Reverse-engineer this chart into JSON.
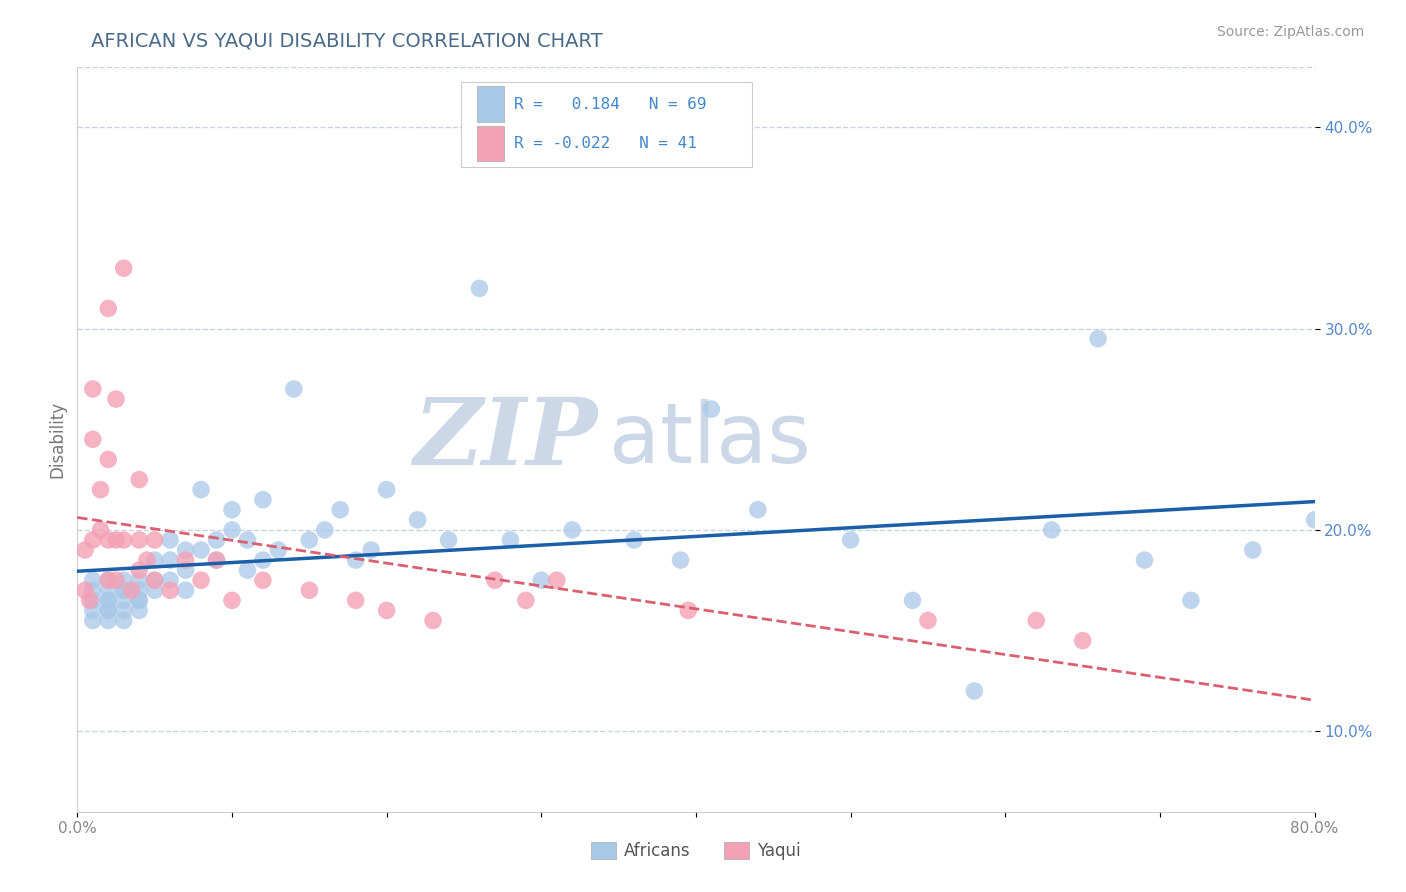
{
  "title": "AFRICAN VS YAQUI DISABILITY CORRELATION CHART",
  "source_text": "Source: ZipAtlas.com",
  "ylabel": "Disability",
  "xlim": [
    0.0,
    0.8
  ],
  "ylim": [
    0.06,
    0.43
  ],
  "xticks": [
    0.0,
    0.1,
    0.2,
    0.3,
    0.4,
    0.5,
    0.6,
    0.7,
    0.8
  ],
  "xticklabels": [
    "0.0%",
    "",
    "",
    "",
    "",
    "",
    "",
    "",
    "80.0%"
  ],
  "yticks": [
    0.1,
    0.2,
    0.3,
    0.4
  ],
  "yticklabels": [
    "10.0%",
    "20.0%",
    "30.0%",
    "40.0%"
  ],
  "african_color": "#a8c8e8",
  "yaqui_color": "#f4a0b5",
  "african_line_color": "#1a5fa8",
  "yaqui_line_color": "#d96070",
  "africans_label": "Africans",
  "yaqui_label": "Yaqui",
  "african_R": 0.184,
  "yaqui_R": -0.022,
  "watermark_zip": "ZIP",
  "watermark_atlas": "atlas",
  "watermark_color": "#ccd8e8",
  "grid_color": "#c8d4e0",
  "background_color": "#ffffff",
  "title_color": "#4a6a8a",
  "source_color": "#999999",
  "tick_color_y": "#5588cc",
  "tick_color_x": "#888888",
  "african_x": [
    0.01,
    0.01,
    0.01,
    0.01,
    0.01,
    0.02,
    0.02,
    0.02,
    0.02,
    0.02,
    0.02,
    0.02,
    0.03,
    0.03,
    0.03,
    0.03,
    0.03,
    0.03,
    0.04,
    0.04,
    0.04,
    0.04,
    0.04,
    0.05,
    0.05,
    0.05,
    0.06,
    0.06,
    0.06,
    0.07,
    0.07,
    0.07,
    0.08,
    0.08,
    0.09,
    0.09,
    0.1,
    0.1,
    0.11,
    0.11,
    0.12,
    0.12,
    0.13,
    0.14,
    0.15,
    0.16,
    0.17,
    0.18,
    0.19,
    0.2,
    0.22,
    0.24,
    0.26,
    0.28,
    0.3,
    0.32,
    0.36,
    0.39,
    0.41,
    0.44,
    0.5,
    0.54,
    0.58,
    0.63,
    0.66,
    0.69,
    0.72,
    0.76,
    0.8
  ],
  "african_y": [
    0.155,
    0.165,
    0.17,
    0.175,
    0.16,
    0.16,
    0.165,
    0.17,
    0.155,
    0.16,
    0.175,
    0.165,
    0.165,
    0.17,
    0.16,
    0.155,
    0.17,
    0.175,
    0.165,
    0.175,
    0.16,
    0.165,
    0.17,
    0.175,
    0.185,
    0.17,
    0.185,
    0.195,
    0.175,
    0.19,
    0.18,
    0.17,
    0.19,
    0.22,
    0.195,
    0.185,
    0.2,
    0.21,
    0.195,
    0.18,
    0.215,
    0.185,
    0.19,
    0.27,
    0.195,
    0.2,
    0.21,
    0.185,
    0.19,
    0.22,
    0.205,
    0.195,
    0.32,
    0.195,
    0.175,
    0.2,
    0.195,
    0.185,
    0.26,
    0.21,
    0.195,
    0.165,
    0.12,
    0.2,
    0.295,
    0.185,
    0.165,
    0.19,
    0.205
  ],
  "yaqui_x": [
    0.005,
    0.005,
    0.008,
    0.01,
    0.01,
    0.01,
    0.015,
    0.015,
    0.02,
    0.02,
    0.02,
    0.02,
    0.025,
    0.025,
    0.025,
    0.03,
    0.03,
    0.035,
    0.04,
    0.04,
    0.04,
    0.045,
    0.05,
    0.05,
    0.06,
    0.07,
    0.08,
    0.09,
    0.1,
    0.12,
    0.15,
    0.18,
    0.2,
    0.23,
    0.27,
    0.29,
    0.31,
    0.395,
    0.55,
    0.62,
    0.65
  ],
  "yaqui_y": [
    0.17,
    0.19,
    0.165,
    0.195,
    0.245,
    0.27,
    0.2,
    0.22,
    0.175,
    0.195,
    0.235,
    0.31,
    0.175,
    0.195,
    0.265,
    0.33,
    0.195,
    0.17,
    0.18,
    0.195,
    0.225,
    0.185,
    0.175,
    0.195,
    0.17,
    0.185,
    0.175,
    0.185,
    0.165,
    0.175,
    0.17,
    0.165,
    0.16,
    0.155,
    0.175,
    0.165,
    0.175,
    0.16,
    0.155,
    0.155,
    0.145
  ]
}
